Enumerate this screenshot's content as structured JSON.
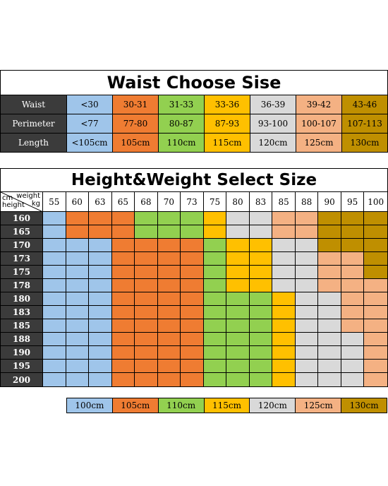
{
  "colors": {
    "blue": "#9fc5ea",
    "orange": "#ef7c32",
    "green": "#92d050",
    "yellow": "#ffc000",
    "gray": "#d9d9d9",
    "peach": "#f4b183",
    "gold": "#bf8f00",
    "header_dark": "#3b3b3b"
  },
  "waist_table": {
    "title": "Waist Choose Sise",
    "rows": [
      {
        "header": "Waist",
        "cells": [
          "<30",
          "30-31",
          "31-33",
          "33-36",
          "36-39",
          "39-42",
          "43-46"
        ]
      },
      {
        "header": "Perimeter",
        "cells": [
          "<77",
          "77-80",
          "80-87",
          "87-93",
          "93-100",
          "100-107",
          "107-113"
        ]
      },
      {
        "header": "Length",
        "cells": [
          "<105cm",
          "105cm",
          "110cm",
          "115cm",
          "120cm",
          "125cm",
          "130cm"
        ]
      }
    ],
    "column_colors": [
      "blue",
      "orange",
      "green",
      "yellow",
      "gray",
      "peach",
      "gold"
    ]
  },
  "size_table": {
    "title": "Height&Weight Select Size",
    "corner": {
      "cm": "cm",
      "height": "height",
      "weight": "weight",
      "kg": "kg"
    },
    "weights": [
      "55",
      "60",
      "63",
      "65",
      "68",
      "70",
      "73",
      "75",
      "80",
      "83",
      "85",
      "88",
      "90",
      "95",
      "100"
    ],
    "heights": [
      "160",
      "165",
      "170",
      "173",
      "175",
      "178",
      "180",
      "183",
      "185",
      "188",
      "190",
      "195",
      "200"
    ],
    "grid": [
      [
        "blue",
        "orange",
        "orange",
        "orange",
        "green",
        "green",
        "green",
        "yellow",
        "gray",
        "gray",
        "peach",
        "peach",
        "gold",
        "gold",
        "gold"
      ],
      [
        "blue",
        "orange",
        "orange",
        "orange",
        "green",
        "green",
        "green",
        "yellow",
        "gray",
        "gray",
        "peach",
        "peach",
        "gold",
        "gold",
        "gold"
      ],
      [
        "blue",
        "blue",
        "blue",
        "orange",
        "orange",
        "orange",
        "orange",
        "green",
        "yellow",
        "yellow",
        "gray",
        "gray",
        "gold",
        "gold",
        "gold"
      ],
      [
        "blue",
        "blue",
        "blue",
        "orange",
        "orange",
        "orange",
        "orange",
        "green",
        "yellow",
        "yellow",
        "gray",
        "gray",
        "peach",
        "peach",
        "gold"
      ],
      [
        "blue",
        "blue",
        "blue",
        "orange",
        "orange",
        "orange",
        "orange",
        "green",
        "yellow",
        "yellow",
        "gray",
        "gray",
        "peach",
        "peach",
        "gold"
      ],
      [
        "blue",
        "blue",
        "blue",
        "orange",
        "orange",
        "orange",
        "orange",
        "green",
        "yellow",
        "yellow",
        "gray",
        "gray",
        "peach",
        "peach",
        "peach"
      ],
      [
        "blue",
        "blue",
        "blue",
        "orange",
        "orange",
        "orange",
        "orange",
        "green",
        "green",
        "green",
        "yellow",
        "gray",
        "gray",
        "peach",
        "peach"
      ],
      [
        "blue",
        "blue",
        "blue",
        "orange",
        "orange",
        "orange",
        "orange",
        "green",
        "green",
        "green",
        "yellow",
        "gray",
        "gray",
        "peach",
        "peach"
      ],
      [
        "blue",
        "blue",
        "blue",
        "orange",
        "orange",
        "orange",
        "orange",
        "green",
        "green",
        "green",
        "yellow",
        "gray",
        "gray",
        "peach",
        "peach"
      ],
      [
        "blue",
        "blue",
        "blue",
        "orange",
        "orange",
        "orange",
        "orange",
        "green",
        "green",
        "green",
        "yellow",
        "gray",
        "gray",
        "gray",
        "peach"
      ],
      [
        "blue",
        "blue",
        "blue",
        "orange",
        "orange",
        "orange",
        "orange",
        "green",
        "green",
        "green",
        "yellow",
        "gray",
        "gray",
        "gray",
        "peach"
      ],
      [
        "blue",
        "blue",
        "blue",
        "orange",
        "orange",
        "orange",
        "orange",
        "green",
        "green",
        "green",
        "yellow",
        "gray",
        "gray",
        "gray",
        "peach"
      ],
      [
        "blue",
        "blue",
        "blue",
        "orange",
        "orange",
        "orange",
        "orange",
        "green",
        "green",
        "green",
        "yellow",
        "gray",
        "gray",
        "gray",
        "peach"
      ]
    ]
  },
  "legend": [
    {
      "label": "100cm",
      "color": "blue"
    },
    {
      "label": "105cm",
      "color": "orange"
    },
    {
      "label": "110cm",
      "color": "green"
    },
    {
      "label": "115cm",
      "color": "yellow"
    },
    {
      "label": "120cm",
      "color": "gray"
    },
    {
      "label": "125cm",
      "color": "peach"
    },
    {
      "label": "130cm",
      "color": "gold"
    }
  ]
}
